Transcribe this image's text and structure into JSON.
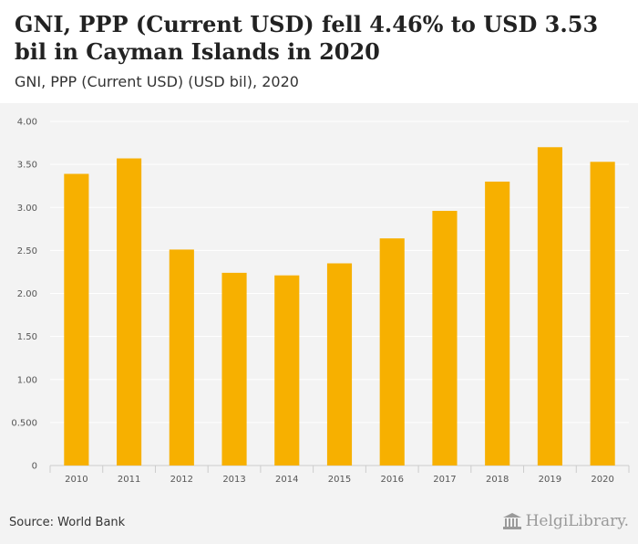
{
  "header": {
    "title": "GNI, PPP (Current USD) fell 4.46% to USD 3.53 bil in Cayman Islands in 2020",
    "subtitle": "GNI, PPP (Current USD) (USD bil), 2020"
  },
  "footer": {
    "source": "Source: World Bank",
    "logo_text": "HelgiLibrary.",
    "logo_icon": "library-columns-icon"
  },
  "colors": {
    "bar": "#f7b000",
    "plot_background": "#f3f3f3",
    "gridline": "#ffffff"
  },
  "chart_data": {
    "type": "bar",
    "categories": [
      "2010",
      "2011",
      "2012",
      "2013",
      "2014",
      "2015",
      "2016",
      "2017",
      "2018",
      "2019",
      "2020"
    ],
    "values": [
      3.39,
      3.57,
      2.51,
      2.24,
      2.21,
      2.35,
      2.64,
      2.96,
      3.3,
      3.7,
      3.53
    ],
    "ylim": [
      0,
      4
    ],
    "yticks": [
      "0",
      "0.500",
      "1.00",
      "1.50",
      "2.00",
      "2.50",
      "3.00",
      "3.50",
      "4.00"
    ],
    "grid": true,
    "xlabel": "",
    "ylabel": ""
  }
}
